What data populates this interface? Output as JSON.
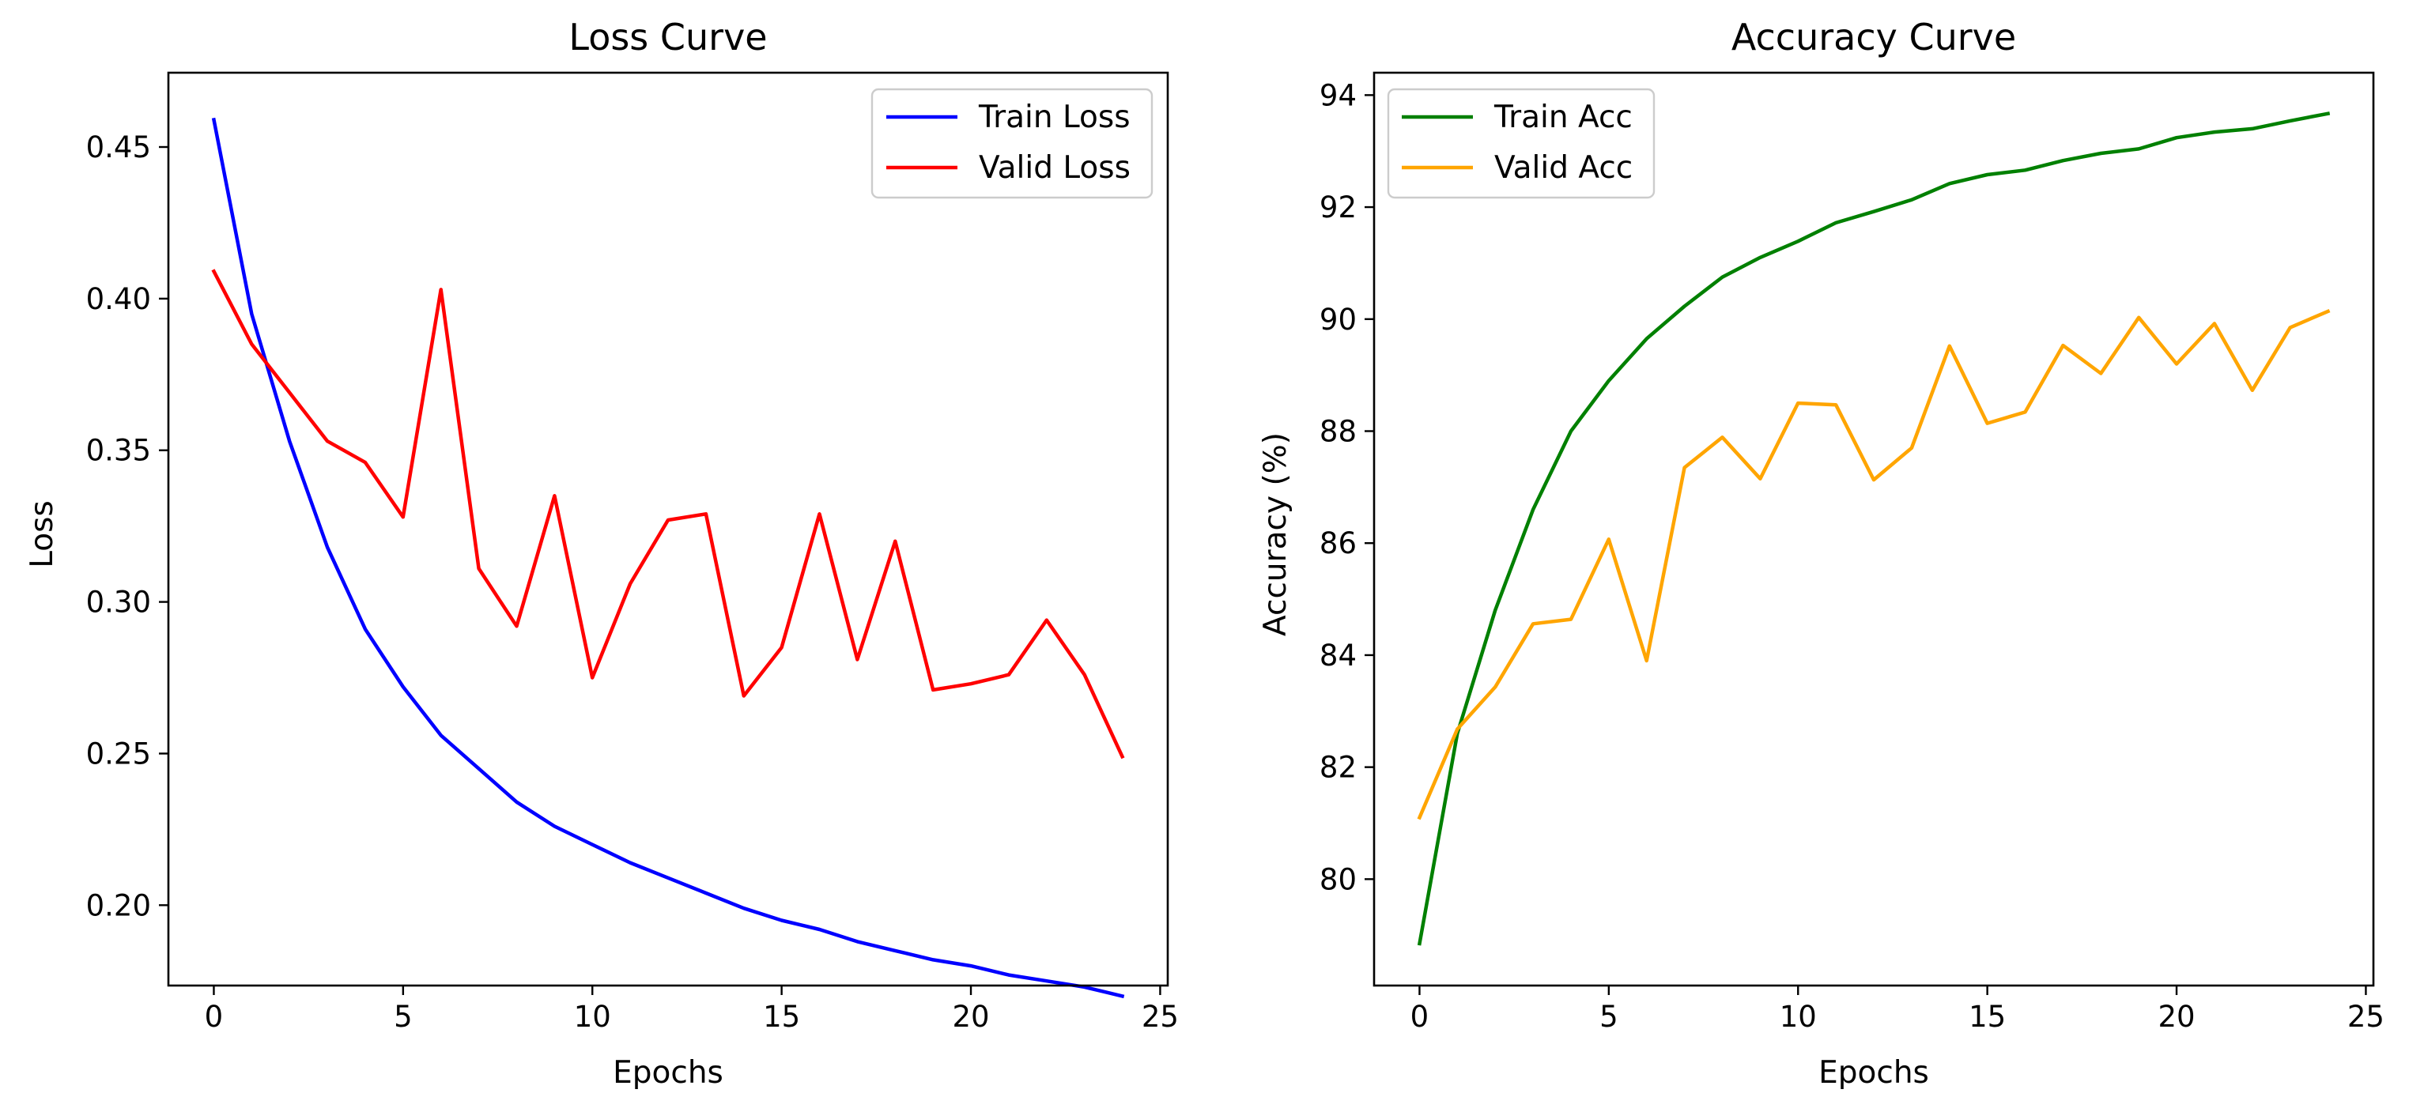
{
  "chart_data": [
    {
      "type": "line",
      "title": "Loss Curve",
      "xlabel": "Epochs",
      "ylabel": "Loss",
      "x": [
        0,
        1,
        2,
        3,
        4,
        5,
        6,
        7,
        8,
        9,
        10,
        11,
        12,
        13,
        14,
        15,
        16,
        17,
        18,
        19,
        20,
        21,
        22,
        23,
        24
      ],
      "xlim": [
        -1.2,
        25.2
      ],
      "ylim": [
        0.1735,
        0.4745
      ],
      "xticks": [
        0,
        5,
        10,
        15,
        20,
        25
      ],
      "yticks": [
        0.2,
        0.25,
        0.3,
        0.35,
        0.4,
        0.45
      ],
      "xtick_labels": [
        "0",
        "5",
        "10",
        "15",
        "20",
        "25"
      ],
      "ytick_labels": [
        "0.20",
        "0.25",
        "0.30",
        "0.35",
        "0.40",
        "0.45"
      ],
      "legend_position": "upper right",
      "grid": false,
      "series": [
        {
          "name": "Train Loss",
          "color": "#0000ff",
          "values": [
            0.459,
            0.395,
            0.353,
            0.318,
            0.291,
            0.272,
            0.256,
            0.245,
            0.234,
            0.226,
            0.22,
            0.214,
            0.209,
            0.204,
            0.199,
            0.195,
            0.192,
            0.188,
            0.185,
            0.182,
            0.18,
            0.177,
            0.175,
            0.173,
            0.17
          ]
        },
        {
          "name": "Valid Loss",
          "color": "#ff0000",
          "values": [
            0.409,
            0.385,
            0.369,
            0.353,
            0.346,
            0.328,
            0.403,
            0.311,
            0.292,
            0.335,
            0.275,
            0.306,
            0.327,
            0.329,
            0.269,
            0.285,
            0.329,
            0.281,
            0.32,
            0.271,
            0.273,
            0.276,
            0.294,
            0.276,
            0.249
          ]
        }
      ]
    },
    {
      "type": "line",
      "title": "Accuracy Curve",
      "xlabel": "Epochs",
      "ylabel": "Accuracy (%)",
      "x": [
        0,
        1,
        2,
        3,
        4,
        5,
        6,
        7,
        8,
        9,
        10,
        11,
        12,
        13,
        14,
        15,
        16,
        17,
        18,
        19,
        20,
        21,
        22,
        23,
        24
      ],
      "xlim": [
        -1.2,
        25.2
      ],
      "ylim": [
        78.1,
        94.4
      ],
      "xticks": [
        0,
        5,
        10,
        15,
        20,
        25
      ],
      "yticks": [
        80,
        82,
        84,
        86,
        88,
        90,
        92,
        94
      ],
      "xtick_labels": [
        "0",
        "5",
        "10",
        "15",
        "20",
        "25"
      ],
      "ytick_labels": [
        "80",
        "82",
        "84",
        "86",
        "88",
        "90",
        "92",
        "94"
      ],
      "legend_position": "upper left",
      "grid": false,
      "series": [
        {
          "name": "Train Acc",
          "color": "#008000",
          "values": [
            78.85,
            82.6,
            84.8,
            86.6,
            88.0,
            88.9,
            89.65,
            90.23,
            90.75,
            91.1,
            91.39,
            91.72,
            91.92,
            92.13,
            92.42,
            92.58,
            92.66,
            92.83,
            92.96,
            93.04,
            93.24,
            93.34,
            93.4,
            93.54,
            93.67
          ]
        },
        {
          "name": "Valid Acc",
          "color": "#ffa500",
          "values": [
            81.1,
            82.68,
            83.43,
            84.56,
            84.64,
            86.07,
            83.9,
            87.35,
            87.89,
            87.15,
            88.5,
            88.47,
            87.13,
            87.7,
            89.52,
            88.14,
            88.34,
            89.53,
            89.03,
            90.03,
            89.2,
            89.92,
            88.73,
            89.85,
            90.14
          ]
        }
      ]
    }
  ]
}
